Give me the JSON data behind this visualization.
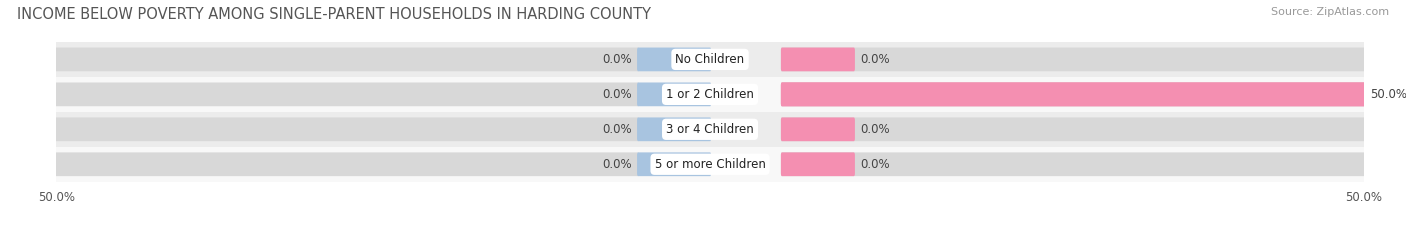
{
  "title": "INCOME BELOW POVERTY AMONG SINGLE-PARENT HOUSEHOLDS IN HARDING COUNTY",
  "source": "Source: ZipAtlas.com",
  "categories": [
    "No Children",
    "1 or 2 Children",
    "3 or 4 Children",
    "5 or more Children"
  ],
  "single_father": [
    0.0,
    0.0,
    0.0,
    0.0
  ],
  "single_mother": [
    0.0,
    50.0,
    0.0,
    0.0
  ],
  "father_color": "#a8c4e0",
  "mother_color": "#f48fb1",
  "row_bg_even": "#ececec",
  "row_bg_odd": "#f8f8f8",
  "bar_bg_color": "#d8d8d8",
  "xlim_left": -50,
  "xlim_right": 50,
  "title_fontsize": 10.5,
  "source_fontsize": 8,
  "value_fontsize": 8.5,
  "category_fontsize": 8.5,
  "legend_fontsize": 9,
  "background_color": "#ffffff",
  "stub_size": 5.5
}
